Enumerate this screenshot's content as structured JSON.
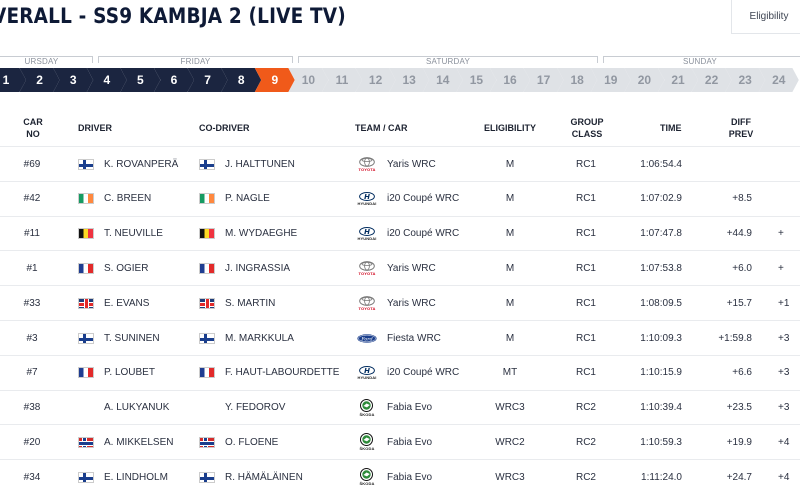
{
  "header": {
    "title": "VERALL - SS9 KAMBJA 2 (LIVE TV)",
    "eligibility_button": "Eligibility"
  },
  "days": [
    "URSDAY",
    "FRIDAY",
    "SATURDAY",
    "SUNDAY"
  ],
  "stages": [
    {
      "num": "1",
      "state": "done"
    },
    {
      "num": "2",
      "state": "done"
    },
    {
      "num": "3",
      "state": "done"
    },
    {
      "num": "4",
      "state": "done"
    },
    {
      "num": "5",
      "state": "done"
    },
    {
      "num": "6",
      "state": "done"
    },
    {
      "num": "7",
      "state": "done"
    },
    {
      "num": "8",
      "state": "done"
    },
    {
      "num": "9",
      "state": "active"
    },
    {
      "num": "10",
      "state": "future"
    },
    {
      "num": "11",
      "state": "future"
    },
    {
      "num": "12",
      "state": "future"
    },
    {
      "num": "13",
      "state": "future"
    },
    {
      "num": "14",
      "state": "future"
    },
    {
      "num": "15",
      "state": "future"
    },
    {
      "num": "16",
      "state": "future"
    },
    {
      "num": "17",
      "state": "future"
    },
    {
      "num": "18",
      "state": "future"
    },
    {
      "num": "19",
      "state": "future"
    },
    {
      "num": "20",
      "state": "future"
    },
    {
      "num": "21",
      "state": "future"
    },
    {
      "num": "22",
      "state": "future"
    },
    {
      "num": "23",
      "state": "future"
    },
    {
      "num": "24",
      "state": "future"
    }
  ],
  "table": {
    "columns": {
      "car_no": "CAR NO",
      "driver": "DRIVER",
      "codriver": "CO-DRIVER",
      "team_car": "TEAM / CAR",
      "eligibility": "ELIGIBILITY",
      "group_class": "GROUP CLASS",
      "time": "TIME",
      "diff_prev": "DIFF PREV"
    },
    "rows": [
      {
        "car": "#69",
        "flag1": "fi",
        "driver": "K. ROVANPERÄ",
        "flag2": "fi",
        "codriver": "J. HALTTUNEN",
        "brand": "toyota",
        "model": "Yaris WRC",
        "elig": "M",
        "grp": "RC1",
        "time": "1:06:54.4",
        "diff": "",
        "diff2": ""
      },
      {
        "car": "#42",
        "flag1": "ie",
        "driver": "C. BREEN",
        "flag2": "ie",
        "codriver": "P. NAGLE",
        "brand": "hyundai",
        "model": "i20 Coupé WRC",
        "elig": "M",
        "grp": "RC1",
        "time": "1:07:02.9",
        "diff": "+8.5",
        "diff2": ""
      },
      {
        "car": "#11",
        "flag1": "be",
        "driver": "T. NEUVILLE",
        "flag2": "be",
        "codriver": "M. WYDAEGHE",
        "brand": "hyundai",
        "model": "i20 Coupé WRC",
        "elig": "M",
        "grp": "RC1",
        "time": "1:07:47.8",
        "diff": "+44.9",
        "diff2": "+"
      },
      {
        "car": "#1",
        "flag1": "fr",
        "driver": "S. OGIER",
        "flag2": "fr",
        "codriver": "J. INGRASSIA",
        "brand": "toyota",
        "model": "Yaris WRC",
        "elig": "M",
        "grp": "RC1",
        "time": "1:07:53.8",
        "diff": "+6.0",
        "diff2": "+"
      },
      {
        "car": "#33",
        "flag1": "gb",
        "driver": "E. EVANS",
        "flag2": "gb",
        "codriver": "S. MARTIN",
        "brand": "toyota",
        "model": "Yaris WRC",
        "elig": "M",
        "grp": "RC1",
        "time": "1:08:09.5",
        "diff": "+15.7",
        "diff2": "+1"
      },
      {
        "car": "#3",
        "flag1": "fi",
        "driver": "T. SUNINEN",
        "flag2": "fi",
        "codriver": "M. MARKKULA",
        "brand": "ford",
        "model": "Fiesta WRC",
        "elig": "M",
        "grp": "RC1",
        "time": "1:10:09.3",
        "diff": "+1:59.8",
        "diff2": "+3"
      },
      {
        "car": "#7",
        "flag1": "fr",
        "driver": "P. LOUBET",
        "flag2": "fr",
        "codriver": "F. HAUT-LABOURDETTE",
        "brand": "hyundai",
        "model": "i20 Coupé WRC",
        "elig": "MT",
        "grp": "RC1",
        "time": "1:10:15.9",
        "diff": "+6.6",
        "diff2": "+3"
      },
      {
        "car": "#38",
        "flag1": "",
        "driver": "A. LUKYANUK",
        "flag2": "",
        "codriver": "Y. FEDOROV",
        "brand": "skoda",
        "model": "Fabia Evo",
        "elig": "WRC3",
        "grp": "RC2",
        "time": "1:10:39.4",
        "diff": "+23.5",
        "diff2": "+3"
      },
      {
        "car": "#20",
        "flag1": "no",
        "driver": "A. MIKKELSEN",
        "flag2": "no",
        "codriver": "O. FLOENE",
        "brand": "skoda",
        "model": "Fabia Evo",
        "elig": "WRC2",
        "grp": "RC2",
        "time": "1:10:59.3",
        "diff": "+19.9",
        "diff2": "+4"
      },
      {
        "car": "#34",
        "flag1": "fi",
        "driver": "E. LINDHOLM",
        "flag2": "fi",
        "codriver": "R. HÄMÄLÄINEN",
        "brand": "skoda",
        "model": "Fabia Evo",
        "elig": "WRC3",
        "grp": "RC2",
        "time": "1:11:24.0",
        "diff": "+24.7",
        "diff2": "+4"
      }
    ]
  },
  "brands": {
    "toyota": {
      "icon": "toyota-logo-icon",
      "text": "TOYOTA",
      "color": "#d0021b"
    },
    "hyundai": {
      "icon": "hyundai-logo-icon",
      "text": "HYUNDAI",
      "color": "#002c5f"
    },
    "ford": {
      "icon": "ford-logo-icon",
      "text": "",
      "color": "#1a3e8c"
    },
    "skoda": {
      "icon": "skoda-logo-icon",
      "text": "ŠKODA",
      "color": "#2e8b3a"
    }
  },
  "colors": {
    "accent": "#f05a1a",
    "done_stage": "#1b2540",
    "future_stage": "#dfe2e6"
  }
}
